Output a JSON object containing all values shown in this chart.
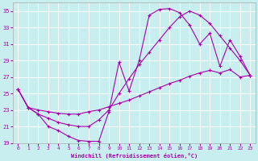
{
  "xlabel": "Windchill (Refroidissement éolien,°C)",
  "bg_color": "#c8eef0",
  "grid_color": "#ffffff",
  "line_color": "#aa00aa",
  "xlim": [
    -0.5,
    23.5
  ],
  "ylim": [
    19,
    36
  ],
  "xticks": [
    0,
    1,
    2,
    3,
    4,
    5,
    6,
    7,
    8,
    9,
    10,
    11,
    12,
    13,
    14,
    15,
    16,
    17,
    18,
    19,
    20,
    21,
    22,
    23
  ],
  "yticks": [
    19,
    21,
    23,
    25,
    27,
    29,
    31,
    33,
    35
  ],
  "curve1_x": [
    0,
    1,
    2,
    3,
    4,
    5,
    6,
    7,
    8,
    9,
    10,
    11,
    12,
    13,
    14,
    15,
    16,
    17,
    18,
    19,
    20,
    21,
    22,
    23
  ],
  "curve1_y": [
    25.5,
    23.3,
    22.5,
    21.0,
    20.5,
    19.8,
    19.3,
    19.2,
    19.2,
    22.8,
    28.8,
    25.3,
    29.0,
    34.5,
    35.2,
    35.3,
    34.8,
    33.3,
    31.0,
    32.3,
    28.3,
    31.5,
    29.5,
    27.2
  ],
  "curve2_x": [
    0,
    1,
    2,
    3,
    4,
    5,
    6,
    7,
    8,
    9,
    10,
    11,
    12,
    13,
    14,
    15,
    16,
    17,
    18,
    19,
    20,
    21,
    22,
    23
  ],
  "curve2_y": [
    25.5,
    23.3,
    23.0,
    22.8,
    22.6,
    22.5,
    22.5,
    22.8,
    23.0,
    23.4,
    23.8,
    24.2,
    24.7,
    25.2,
    25.7,
    26.2,
    26.6,
    27.1,
    27.5,
    27.8,
    27.5,
    27.9,
    27.0,
    27.2
  ],
  "curve3_x": [
    0,
    1,
    2,
    3,
    4,
    5,
    6,
    7,
    8,
    9,
    10,
    11,
    12,
    13,
    14,
    15,
    16,
    17,
    18,
    19,
    20,
    21,
    22,
    23
  ],
  "curve3_y": [
    25.5,
    23.3,
    22.5,
    22.0,
    21.5,
    21.2,
    21.0,
    21.0,
    21.8,
    23.0,
    25.0,
    26.8,
    28.5,
    30.0,
    31.5,
    33.0,
    34.3,
    35.0,
    34.5,
    33.5,
    32.0,
    30.5,
    29.0,
    27.2
  ]
}
